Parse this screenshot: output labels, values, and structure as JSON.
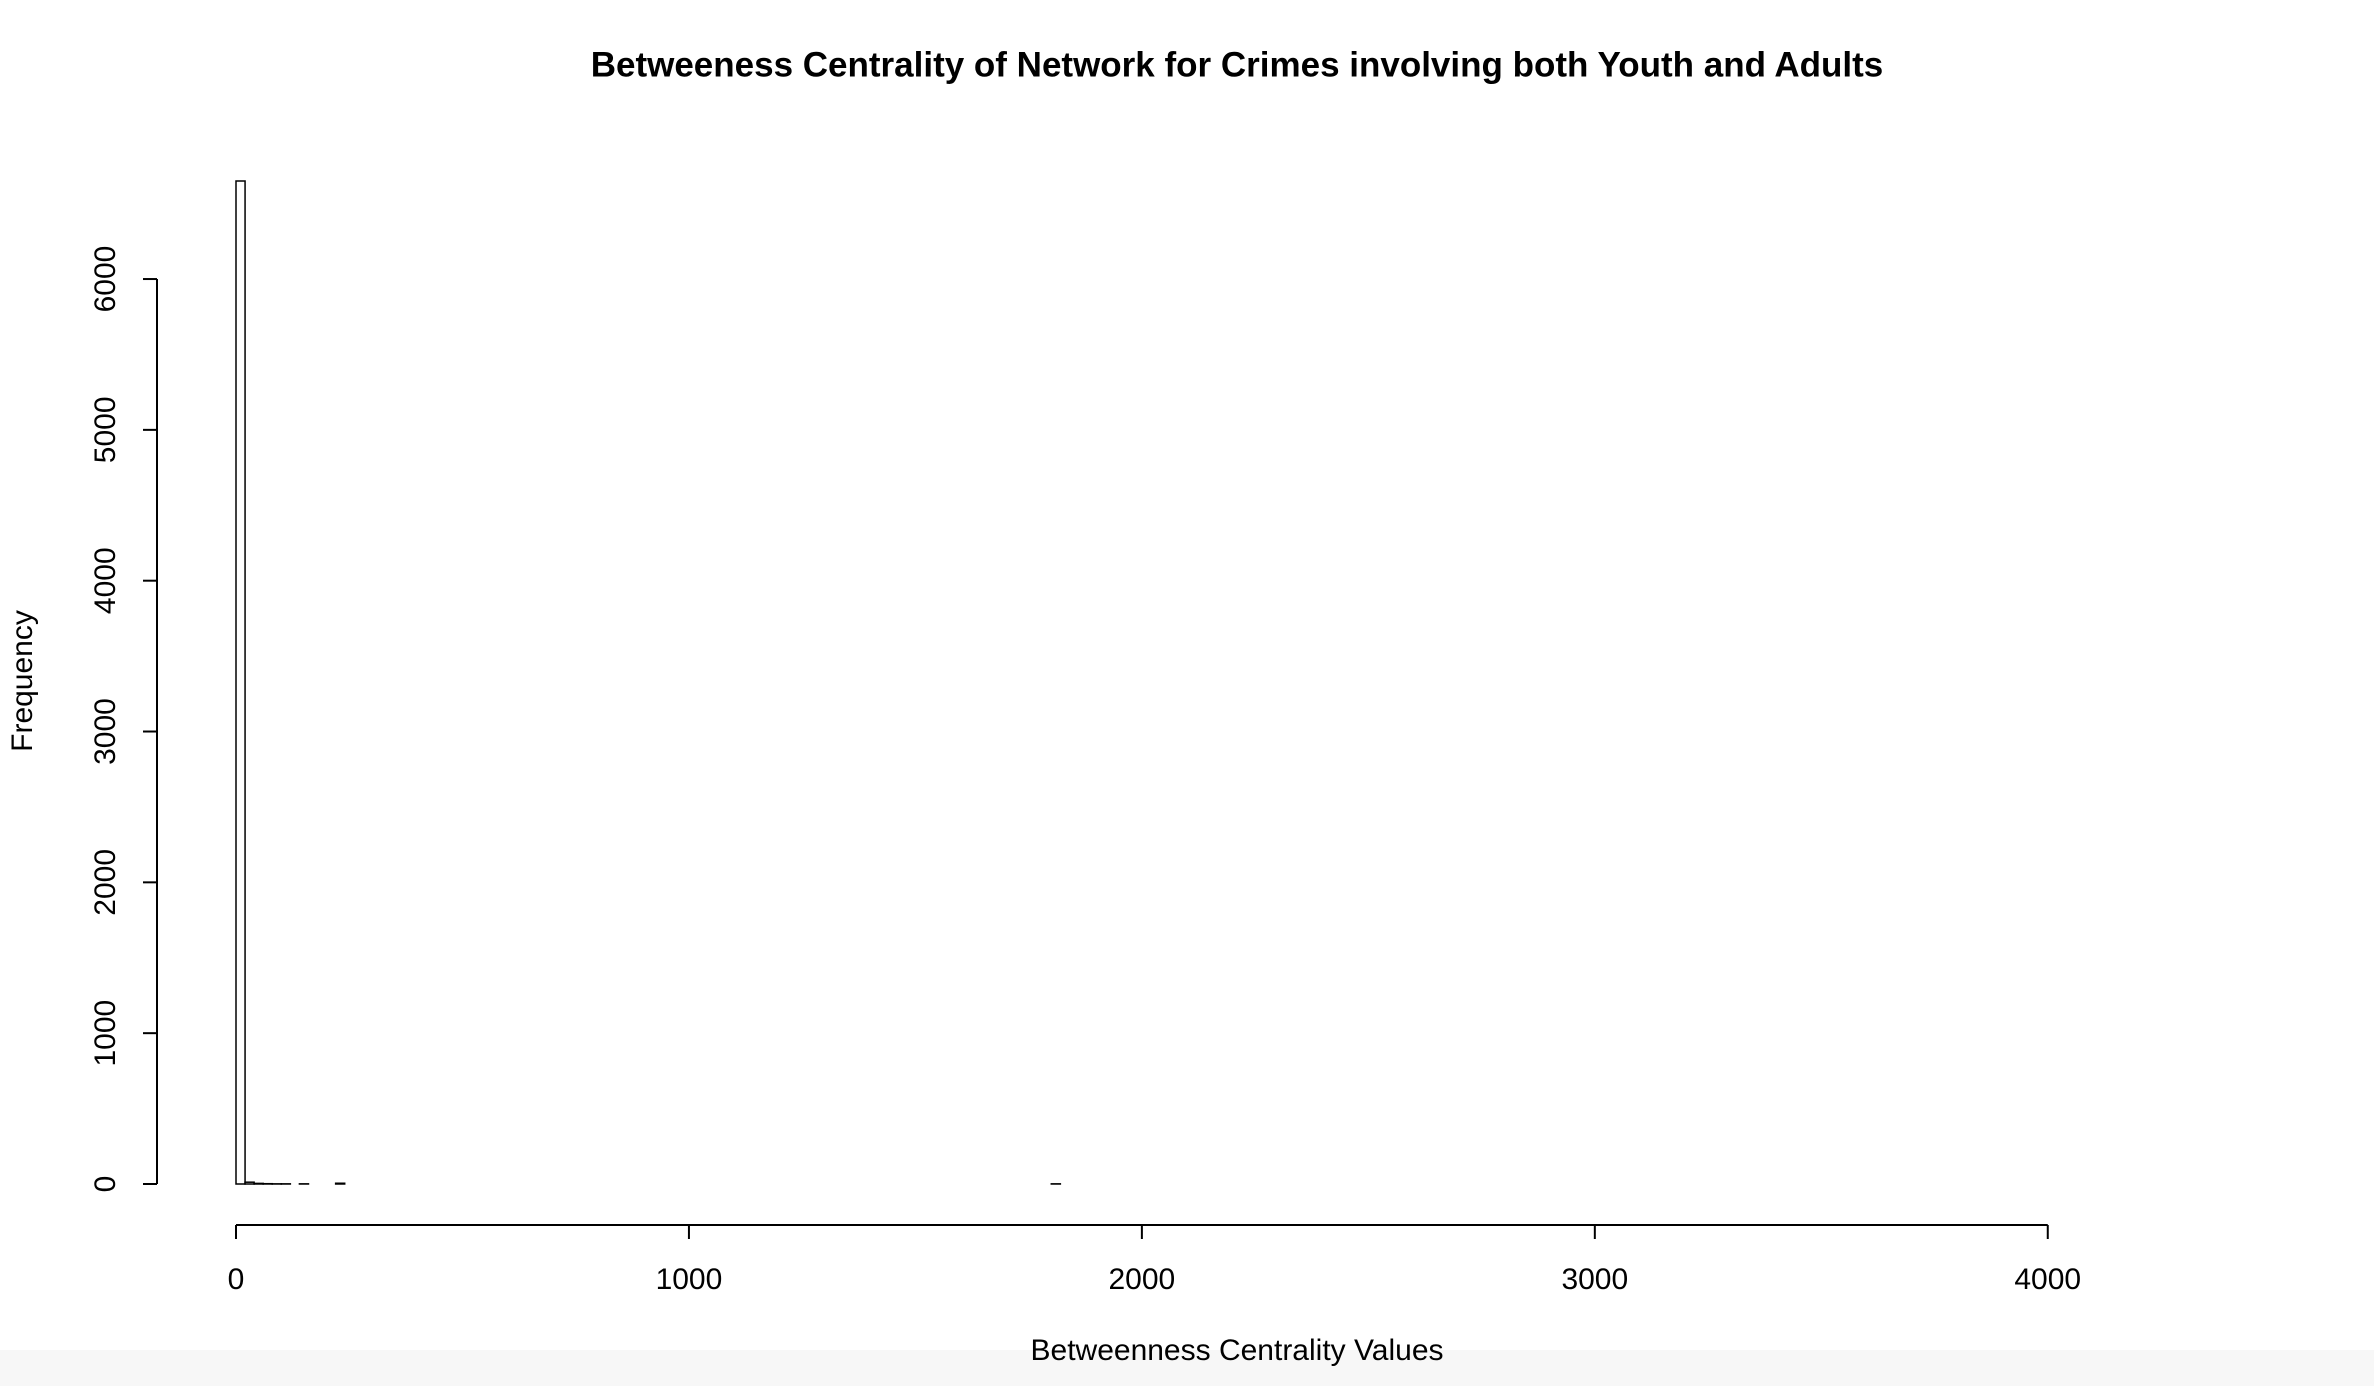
{
  "chart_data": {
    "type": "histogram",
    "title": "Betweeness Centrality of Network for Crimes involving both Youth and Adults",
    "x_label": "Betweenness Centrality Values",
    "y_label": "Frequency",
    "bins": [
      0,
      20,
      40,
      60,
      80,
      100,
      120,
      140,
      160,
      180,
      200,
      220,
      240,
      260,
      280,
      300,
      320,
      340,
      360,
      380,
      400,
      420,
      440,
      460,
      480,
      500,
      520,
      540,
      560,
      580,
      600,
      620,
      640,
      660,
      680,
      700,
      720,
      740,
      760,
      780,
      800,
      820,
      840,
      860,
      880,
      900,
      920,
      940,
      960,
      980,
      1000,
      1020,
      1040,
      1060,
      1080,
      1100,
      1120,
      1140,
      1160,
      1180,
      1200,
      1220,
      1240,
      1260,
      1280,
      1300,
      1320,
      1340,
      1360,
      1380,
      1400,
      1420,
      1440,
      1460,
      1480,
      1500,
      1520,
      1540,
      1560,
      1580,
      1600,
      1620,
      1640,
      1660,
      1680,
      1700,
      1720,
      1740,
      1760,
      1780,
      1800,
      1820,
      1840,
      1860,
      1880,
      1900,
      1920,
      1940,
      1960,
      1980,
      2000,
      2020,
      2040,
      2060,
      2080,
      2100,
      2120,
      2140,
      2160,
      2180,
      2200,
      2220,
      2240,
      2260,
      2280,
      2300,
      2320,
      2340,
      2360,
      2380,
      2400,
      2420,
      2440,
      2460,
      2480,
      2500,
      2520,
      2540,
      2560,
      2580,
      2600,
      2620,
      2640,
      2660,
      2680,
      2700,
      2720,
      2740,
      2760,
      2780,
      2800,
      2820,
      2840,
      2860,
      2880,
      2900,
      2920,
      2940,
      2960,
      2980,
      3000,
      3020,
      3040,
      3060,
      3080,
      3100,
      3120,
      3140,
      3160,
      3180,
      3200,
      3220,
      3240,
      3260,
      3280,
      3300,
      3320,
      3340,
      3360,
      3380,
      3400,
      3420,
      3440,
      3460,
      3480,
      3500,
      3520,
      3540,
      3560,
      3580,
      3600,
      3620,
      3640,
      3660,
      3680,
      3700,
      3720,
      3740,
      3760,
      3780,
      3800,
      3820,
      3840,
      3860,
      3880,
      3900,
      3920,
      3940,
      3960,
      3980,
      4000,
      4020,
      4040,
      4060,
      4080,
      4100,
      4120,
      4140,
      4160,
      4180,
      4200,
      4220,
      4240,
      4260,
      4280,
      4300,
      4320,
      4340,
      4360,
      4380,
      4400,
      4420
    ],
    "values": [
      6650,
      12,
      4,
      2,
      1,
      1,
      0,
      1,
      0,
      0,
      0,
      5,
      0,
      0,
      0,
      0,
      0,
      0,
      0,
      0,
      0,
      0,
      0,
      0,
      0,
      0,
      0,
      0,
      0,
      0,
      0,
      0,
      0,
      0,
      0,
      0,
      0,
      0,
      0,
      0,
      0,
      0,
      0,
      0,
      0,
      0,
      0,
      0,
      0,
      0,
      0,
      0,
      0,
      0,
      0,
      0,
      0,
      0,
      0,
      0,
      0,
      0,
      0,
      0,
      0,
      0,
      0,
      0,
      0,
      0,
      0,
      0,
      0,
      0,
      0,
      0,
      0,
      0,
      0,
      0,
      0,
      0,
      0,
      0,
      0,
      0,
      0,
      0,
      0,
      0,
      1,
      0,
      0,
      0,
      0,
      0,
      0,
      0,
      0,
      0,
      0,
      0,
      0,
      0,
      0,
      0,
      0,
      0,
      0,
      0,
      0,
      0,
      0,
      0,
      0,
      0,
      0,
      0,
      0,
      0,
      0,
      0,
      0,
      0,
      0,
      0,
      0,
      0,
      0,
      0,
      0,
      0,
      0,
      0,
      0,
      0,
      0,
      0,
      0,
      0,
      0,
      0,
      0,
      0,
      0,
      0,
      0,
      0,
      0,
      0,
      0,
      0,
      0,
      0,
      0,
      0,
      0,
      0,
      0,
      0,
      0,
      0,
      0,
      0,
      0,
      0,
      0,
      0,
      0,
      0,
      0,
      0,
      0,
      0,
      0,
      0,
      0,
      0,
      0,
      0,
      0,
      0,
      0,
      0,
      0,
      0,
      0,
      0,
      0,
      0,
      0,
      0,
      0,
      0,
      0,
      0,
      0,
      0,
      0,
      0,
      0,
      0,
      0,
      0,
      0,
      0,
      0,
      0,
      0,
      0,
      0,
      0,
      0,
      0,
      0,
      0,
      0,
      0,
      0,
      0,
      0
    ],
    "color": "#ffffff",
    "edgecolor": "#000000",
    "xlim": [
      0,
      4420
    ],
    "xticks": [
      0,
      1000,
      2000,
      3000,
      4000
    ],
    "ylim": [
      0,
      6650
    ],
    "yticks": [
      0,
      1000,
      2000,
      3000,
      4000,
      5000,
      6000
    ]
  }
}
